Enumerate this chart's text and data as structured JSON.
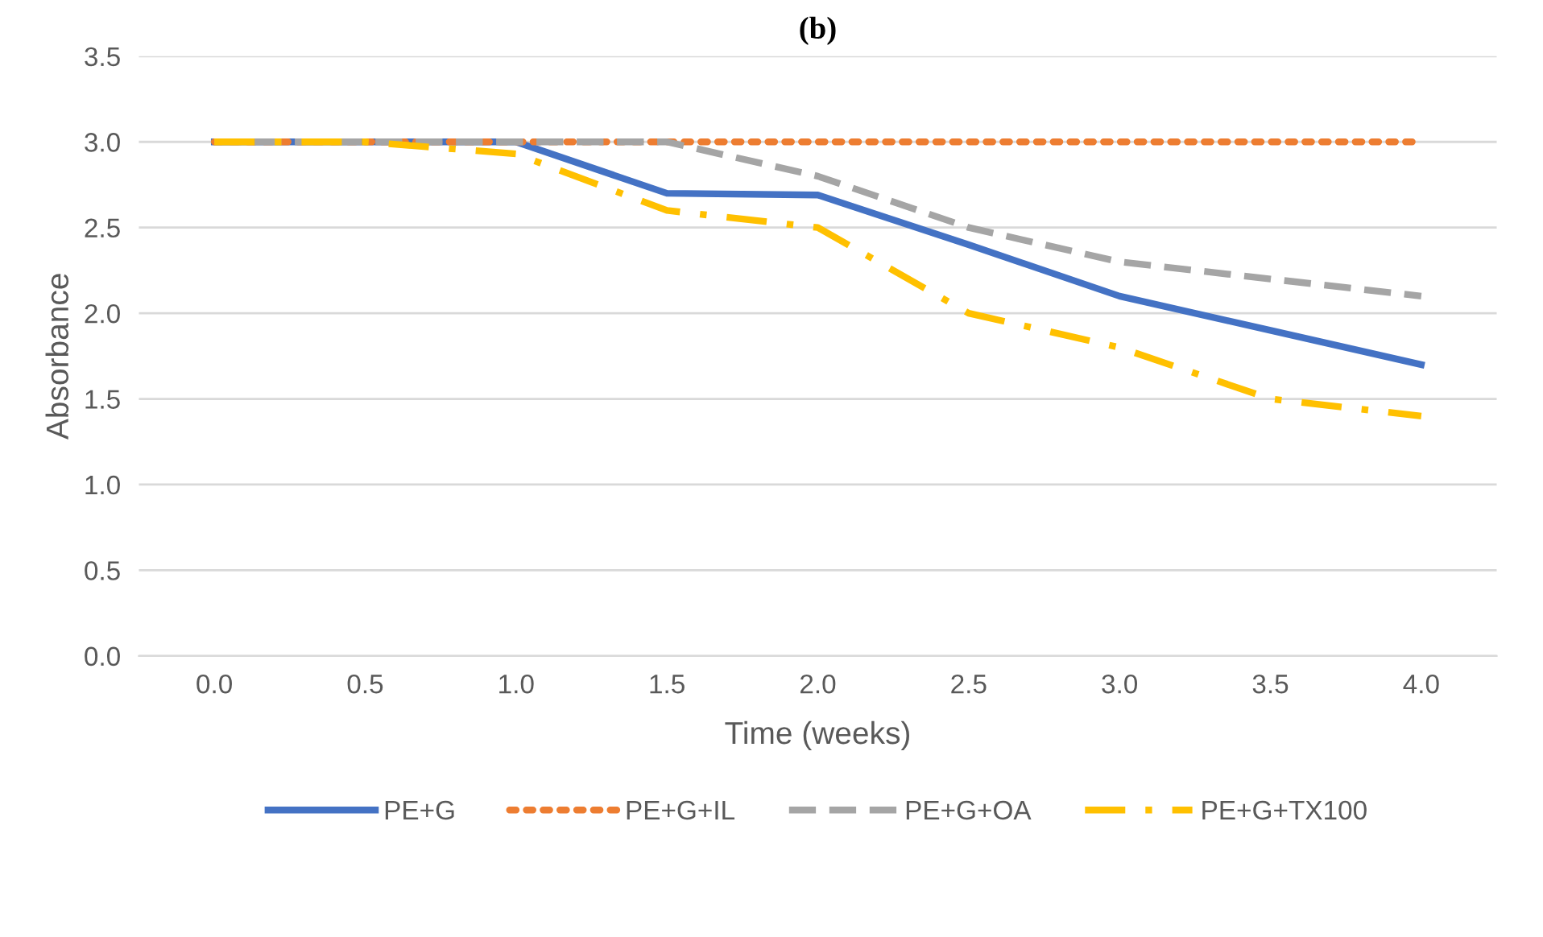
{
  "chart_data": {
    "type": "line",
    "title": "(b)",
    "xlabel": "Time (weeks)",
    "ylabel": "Absorbance",
    "categories": [
      "0.0",
      "0.5",
      "1.0",
      "1.5",
      "2.0",
      "2.5",
      "3.0",
      "3.5",
      "4.0"
    ],
    "series": [
      {
        "name": "PE+G",
        "color": "#4472c4",
        "line_style": "solid",
        "values": [
          3.0,
          3.0,
          3.0,
          2.7,
          2.69,
          2.4,
          2.1,
          1.9,
          1.7
        ]
      },
      {
        "name": "PE+G+IL",
        "color": "#ed7d31",
        "line_style": "dotted",
        "values": [
          3.0,
          3.0,
          3.0,
          3.0,
          3.0,
          3.0,
          3.0,
          3.0,
          3.0
        ]
      },
      {
        "name": "PE+G+OA",
        "color": "#a5a5a5",
        "line_style": "dashed",
        "values": [
          3.0,
          3.0,
          3.0,
          3.0,
          2.8,
          2.5,
          2.3,
          2.2,
          2.1
        ]
      },
      {
        "name": "PE+G+TX100",
        "color": "#ffc000",
        "line_style": "dashdot",
        "values": [
          3.0,
          3.0,
          2.93,
          2.6,
          2.5,
          2.0,
          1.8,
          1.5,
          1.4
        ]
      }
    ],
    "ylim": [
      0,
      3.5
    ],
    "yticks": [
      {
        "value": 0,
        "label": "0.0"
      },
      {
        "value": 0.5,
        "label": "0.5"
      },
      {
        "value": 1,
        "label": "1.0"
      },
      {
        "value": 1.5,
        "label": "1.5"
      },
      {
        "value": 2,
        "label": "2.0"
      },
      {
        "value": 2.5,
        "label": "2.5"
      },
      {
        "value": 3,
        "label": "3.0"
      },
      {
        "value": 3.5,
        "label": "3.5"
      }
    ],
    "grid": "y",
    "legend": "bottom"
  }
}
